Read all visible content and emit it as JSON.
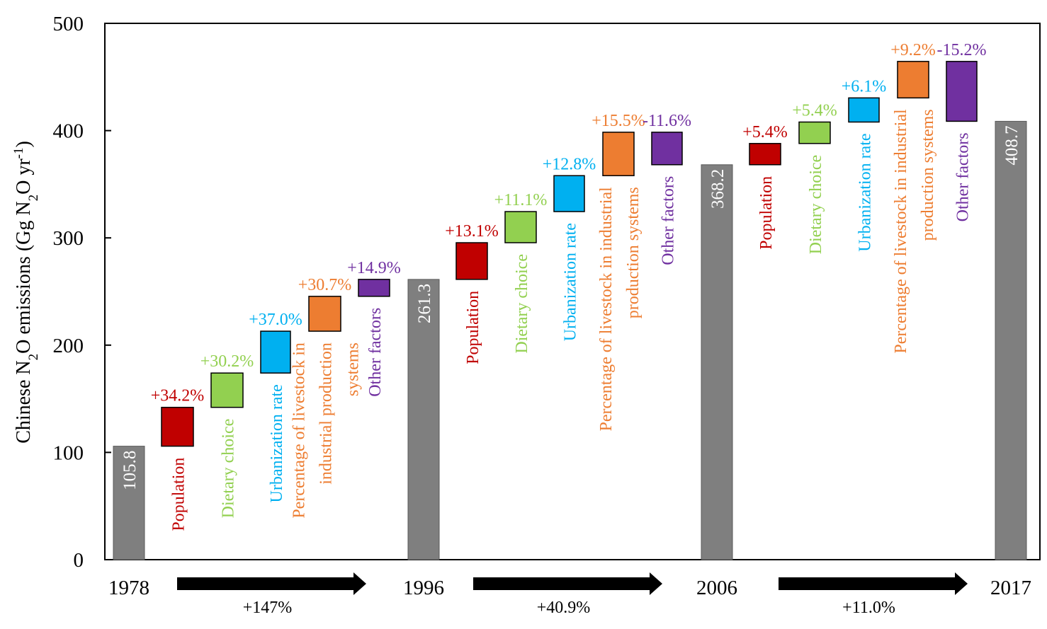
{
  "chart_data": {
    "type": "bar",
    "subtype": "waterfall",
    "ylabel": "Chinese N2O emissions (Gg N2O yr-1)",
    "ylim": [
      0,
      500
    ],
    "yticks": [
      "0",
      "100",
      "200",
      "300",
      "400",
      "500"
    ],
    "grid": false,
    "factor_colors": {
      "Population": "#c00000",
      "Dietary choice": "#92d050",
      "Urbanization rate": "#00b0f0",
      "Percentage of livestock in industrial production systems": "#ed7d31",
      "Other factors": "#7030a0"
    },
    "total_color": "#7f7f7f",
    "periods": [
      {
        "start_year": "1978",
        "end_year": "1996",
        "start_value": 105.8,
        "end_value": 261.3,
        "start_label": "105.8",
        "end_label": "261.3",
        "change_label": "+147%",
        "factors": [
          {
            "name": "Population",
            "from": 105.8,
            "to": 142,
            "pct": "+34.2%",
            "label_lines": [
              "Population"
            ]
          },
          {
            "name": "Dietary choice",
            "from": 142,
            "to": 174,
            "pct": "+30.2%",
            "label_lines": [
              "Dietary choice"
            ]
          },
          {
            "name": "Urbanization rate",
            "from": 174,
            "to": 213,
            "pct": "+37.0%",
            "label_lines": [
              "Urbanization rate"
            ]
          },
          {
            "name": "Percentage of livestock in industrial production systems",
            "from": 213,
            "to": 245.5,
            "pct": "+30.7%",
            "label_lines": [
              "Percentage of livestock in",
              "industrial production",
              "systems"
            ]
          },
          {
            "name": "Other factors",
            "from": 245.5,
            "to": 261.3,
            "pct": "+14.9%",
            "label_lines": [
              "Other factors"
            ]
          }
        ]
      },
      {
        "start_year": "1996",
        "end_year": "2006",
        "start_value": 261.3,
        "end_value": 368.2,
        "start_label": "261.3",
        "end_label": "368.2",
        "change_label": "+40.9%",
        "factors": [
          {
            "name": "Population",
            "from": 261.3,
            "to": 295.5,
            "pct": "+13.1%",
            "label_lines": [
              "Population"
            ]
          },
          {
            "name": "Dietary choice",
            "from": 295.5,
            "to": 324.5,
            "pct": "+11.1%",
            "label_lines": [
              "Dietary choice"
            ]
          },
          {
            "name": "Urbanization rate",
            "from": 324.5,
            "to": 358,
            "pct": "+12.8%",
            "label_lines": [
              "Urbanization rate"
            ]
          },
          {
            "name": "Percentage of livestock in industrial production systems",
            "from": 358,
            "to": 398.5,
            "pct": "+15.5%",
            "label_lines": [
              "Percentage of livestock in industrial",
              "production systems"
            ]
          },
          {
            "name": "Other factors",
            "from": 398.5,
            "to": 368.2,
            "pct": "-11.6%",
            "label_lines": [
              "Other factors"
            ]
          }
        ]
      },
      {
        "start_year": "2006",
        "end_year": "2017",
        "start_value": 368.2,
        "end_value": 408.7,
        "start_label": "368.2",
        "end_label": "408.7",
        "change_label": "+11.0%",
        "factors": [
          {
            "name": "Population",
            "from": 368.2,
            "to": 388,
            "pct": "+5.4%",
            "label_lines": [
              "Population"
            ]
          },
          {
            "name": "Dietary choice",
            "from": 388,
            "to": 408,
            "pct": "+5.4%",
            "label_lines": [
              "Dietary choice"
            ]
          },
          {
            "name": "Urbanization rate",
            "from": 408,
            "to": 430.5,
            "pct": "+6.1%",
            "label_lines": [
              "Urbanization rate"
            ]
          },
          {
            "name": "Percentage of livestock in industrial production systems",
            "from": 430.5,
            "to": 464.5,
            "pct": "+9.2%",
            "label_lines": [
              "Percentage of livestock in industrial",
              "production systems"
            ]
          },
          {
            "name": "Other factors",
            "from": 464.5,
            "to": 408.7,
            "pct": "-15.2%",
            "label_lines": [
              "Other factors"
            ]
          }
        ]
      }
    ]
  }
}
